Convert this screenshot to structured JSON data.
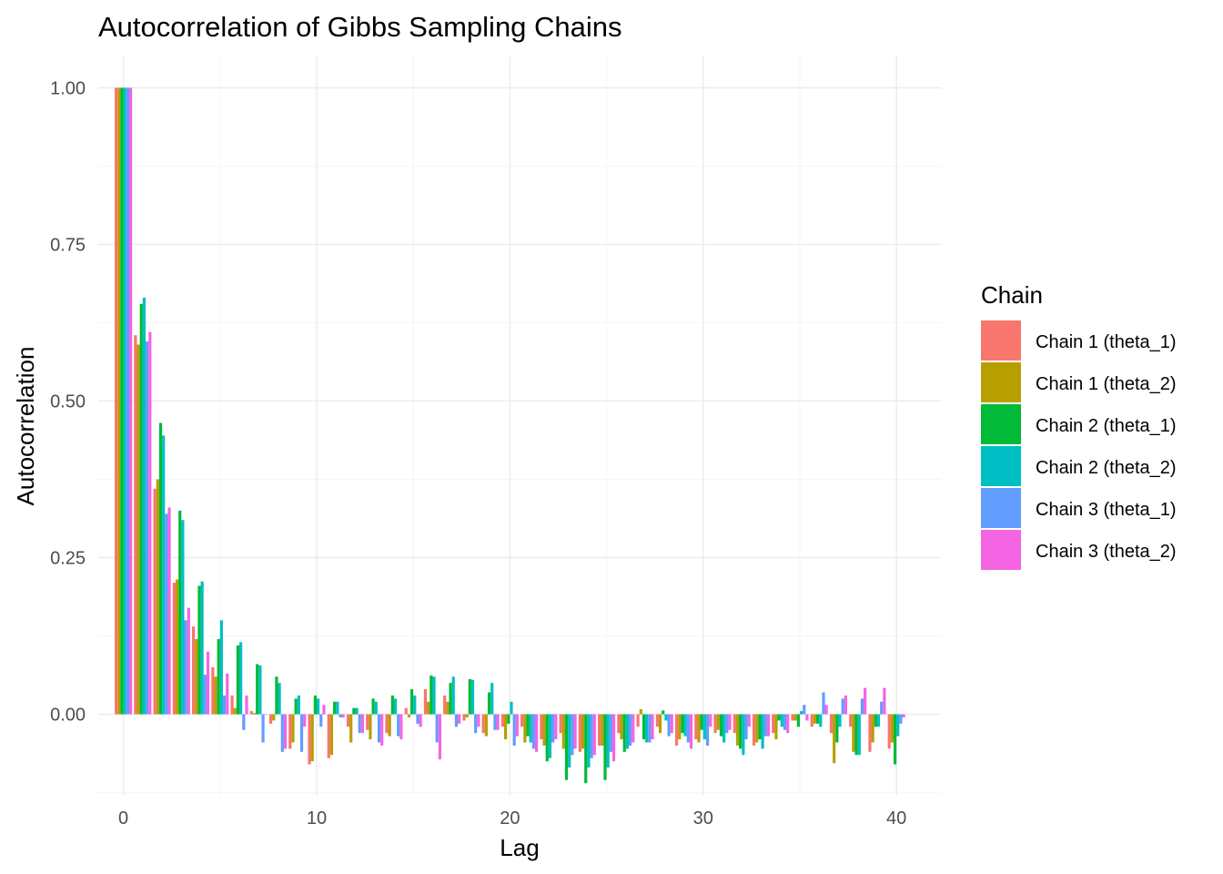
{
  "chart_data": {
    "type": "bar",
    "title": "Autocorrelation of Gibbs Sampling Chains",
    "xlabel": "Lag",
    "ylabel": "Autocorrelation",
    "xlim": [
      -1.3,
      42.3
    ],
    "ylim": [
      -0.13,
      1.05
    ],
    "x_ticks": [
      0,
      10,
      20,
      30,
      40
    ],
    "y_ticks": [
      0.0,
      0.25,
      0.5,
      0.75,
      1.0
    ],
    "x_tick_labels": [
      "0",
      "10",
      "20",
      "30",
      "40"
    ],
    "y_tick_labels": [
      "0.00",
      "0.25",
      "0.50",
      "0.75",
      "1.00"
    ],
    "grid": true,
    "legend": {
      "title": "Chain",
      "position": "right"
    },
    "lags": [
      0,
      1,
      2,
      3,
      4,
      5,
      6,
      7,
      8,
      9,
      10,
      11,
      12,
      13,
      14,
      15,
      16,
      17,
      18,
      19,
      20,
      21,
      22,
      23,
      24,
      25,
      26,
      27,
      28,
      29,
      30,
      31,
      32,
      33,
      34,
      35,
      36,
      37,
      38,
      39,
      40
    ],
    "series": [
      {
        "name": "Chain 1 (theta_1)",
        "color": "#F8766D",
        "values": [
          1.0,
          0.605,
          0.36,
          0.21,
          0.14,
          0.075,
          0.03,
          0.005,
          -0.015,
          -0.055,
          -0.08,
          -0.07,
          -0.02,
          -0.025,
          -0.03,
          0.01,
          0.04,
          0.03,
          -0.01,
          -0.03,
          -0.02,
          -0.02,
          -0.04,
          -0.03,
          -0.06,
          -0.05,
          -0.03,
          -0.02,
          -0.02,
          -0.05,
          -0.04,
          -0.03,
          -0.03,
          -0.05,
          -0.03,
          -0.01,
          -0.02,
          -0.03,
          -0.02,
          -0.06,
          -0.055
        ]
      },
      {
        "name": "Chain 1 (theta_2)",
        "color": "#B79F00",
        "values": [
          1.0,
          0.59,
          0.375,
          0.215,
          0.12,
          0.06,
          0.01,
          0.002,
          -0.01,
          -0.045,
          -0.075,
          -0.065,
          -0.045,
          -0.04,
          -0.035,
          -0.005,
          0.02,
          0.02,
          -0.005,
          -0.035,
          -0.04,
          -0.045,
          -0.05,
          -0.055,
          -0.055,
          -0.05,
          -0.04,
          0.008,
          -0.03,
          -0.04,
          -0.045,
          -0.025,
          -0.05,
          -0.045,
          -0.04,
          -0.01,
          -0.015,
          -0.078,
          -0.06,
          -0.045,
          -0.045
        ]
      },
      {
        "name": "Chain 2 (theta_1)",
        "color": "#00BA38",
        "values": [
          1.0,
          0.655,
          0.465,
          0.325,
          0.205,
          0.12,
          0.11,
          0.08,
          0.06,
          0.025,
          0.03,
          0.02,
          0.01,
          0.025,
          0.03,
          0.04,
          0.062,
          0.05,
          0.056,
          0.035,
          -0.015,
          -0.035,
          -0.075,
          -0.105,
          -0.11,
          -0.105,
          -0.06,
          -0.04,
          0.006,
          -0.03,
          -0.025,
          -0.035,
          -0.055,
          -0.04,
          -0.01,
          -0.02,
          -0.015,
          -0.045,
          -0.065,
          -0.02,
          -0.08
        ]
      },
      {
        "name": "Chain 2 (theta_2)",
        "color": "#00BFC4",
        "values": [
          1.0,
          0.665,
          0.445,
          0.31,
          0.212,
          0.15,
          0.115,
          0.078,
          0.05,
          0.03,
          0.025,
          0.02,
          0.01,
          0.02,
          0.025,
          0.03,
          0.06,
          0.06,
          0.055,
          0.05,
          0.02,
          -0.045,
          -0.07,
          -0.085,
          -0.085,
          -0.085,
          -0.055,
          -0.045,
          -0.01,
          -0.035,
          -0.04,
          -0.045,
          -0.065,
          -0.055,
          -0.02,
          0.005,
          -0.02,
          -0.02,
          -0.065,
          -0.02,
          -0.035
        ]
      },
      {
        "name": "Chain 3 (theta_1)",
        "color": "#619CFF",
        "values": [
          1.0,
          0.595,
          0.32,
          0.15,
          0.063,
          0.03,
          -0.025,
          -0.045,
          -0.06,
          -0.06,
          -0.02,
          -0.005,
          -0.03,
          -0.045,
          -0.035,
          -0.015,
          -0.045,
          -0.02,
          -0.03,
          -0.025,
          -0.05,
          -0.055,
          -0.045,
          -0.065,
          -0.07,
          -0.06,
          -0.05,
          -0.045,
          -0.035,
          -0.045,
          -0.05,
          -0.03,
          -0.04,
          -0.035,
          -0.025,
          0.015,
          0.035,
          0.025,
          0.025,
          0.02,
          -0.015
        ]
      },
      {
        "name": "Chain 3 (theta_2)",
        "color": "#F564E3",
        "values": [
          1.0,
          0.61,
          0.33,
          0.17,
          0.1,
          0.065,
          0.03,
          0.0,
          -0.055,
          -0.02,
          0.015,
          -0.005,
          -0.03,
          -0.05,
          -0.04,
          -0.02,
          -0.072,
          -0.015,
          -0.02,
          -0.025,
          -0.035,
          -0.06,
          -0.04,
          -0.055,
          -0.065,
          -0.075,
          -0.045,
          -0.04,
          -0.03,
          -0.055,
          -0.02,
          -0.025,
          -0.02,
          -0.035,
          -0.03,
          -0.01,
          0.015,
          0.03,
          0.042,
          0.042,
          -0.005
        ]
      }
    ]
  }
}
